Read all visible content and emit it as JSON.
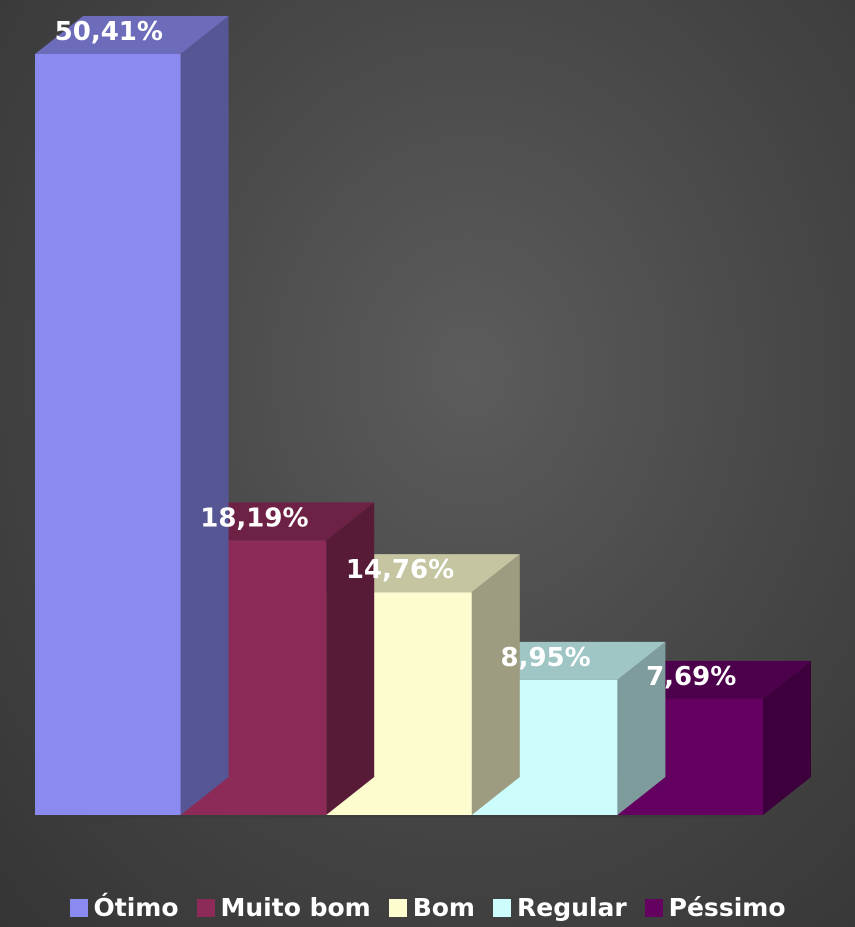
{
  "chart_data": {
    "type": "bar",
    "style": "3d-column",
    "categories": [
      "Ótimo",
      "Muito bom",
      "Bom",
      "Regular",
      "Péssimo"
    ],
    "values": [
      50.41,
      18.19,
      14.76,
      8.95,
      7.69
    ],
    "data_labels": [
      "50,41%",
      "18,19%",
      "14,76%",
      "8,95%",
      "7,69%"
    ],
    "colors": [
      "#8b8af0",
      "#8c2a58",
      "#fdfccf",
      "#cdfcfd",
      "#630060"
    ],
    "ylim": [
      0,
      50.41
    ],
    "grid": false,
    "legend_position": "bottom",
    "title": "",
    "xlabel": "",
    "ylabel": ""
  },
  "legend": {
    "items": [
      {
        "label": "Ótimo",
        "color": "#8b8af0"
      },
      {
        "label": "Muito bom",
        "color": "#8c2a58"
      },
      {
        "label": "Bom",
        "color": "#fdfccf"
      },
      {
        "label": "Regular",
        "color": "#cdfcfd"
      },
      {
        "label": "Péssimo",
        "color": "#630060"
      }
    ]
  }
}
